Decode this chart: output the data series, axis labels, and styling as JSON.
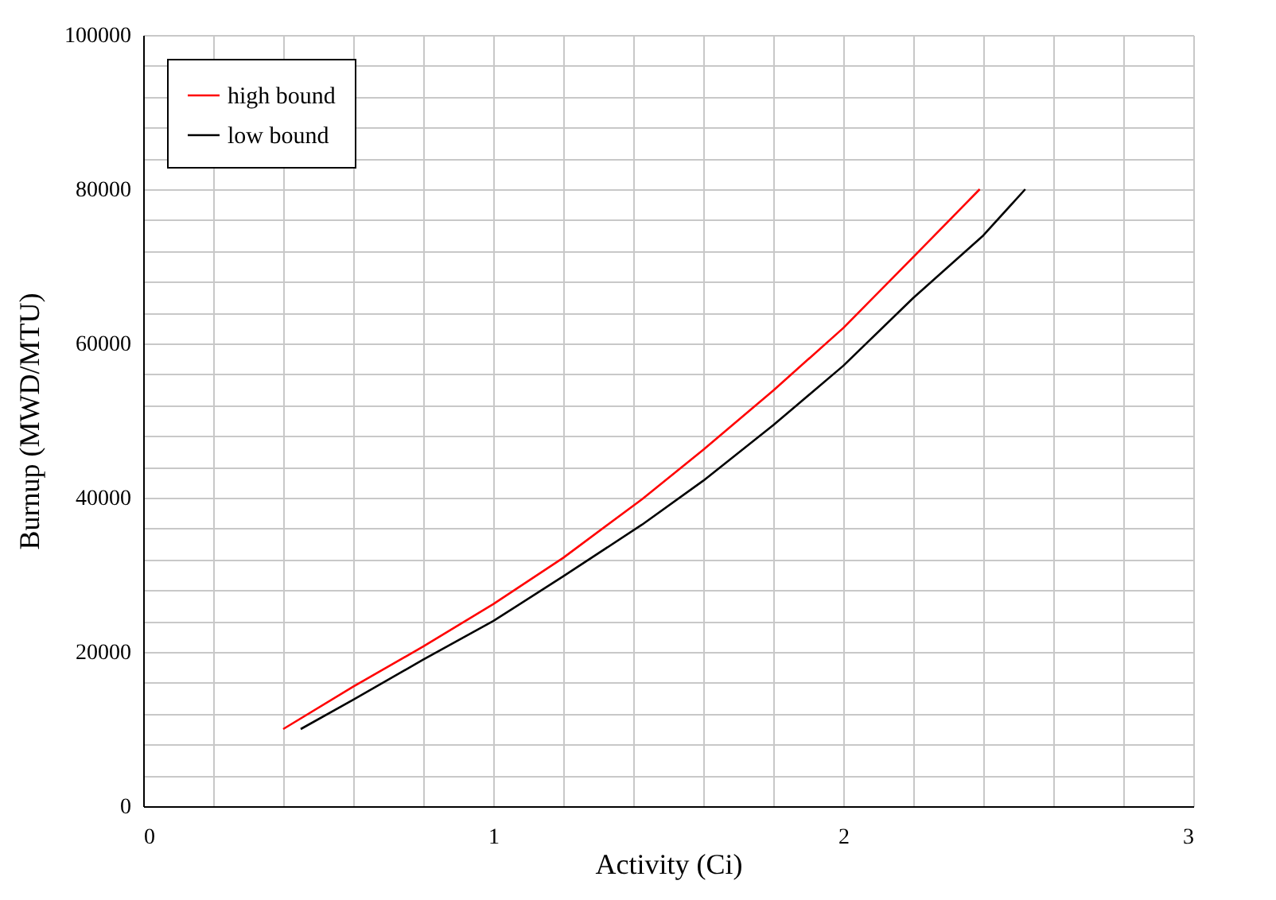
{
  "chart_data": {
    "type": "line",
    "xlabel": "Activity (Ci)",
    "ylabel": "Burnup (MWD/MTU)",
    "xlim": [
      0,
      3
    ],
    "xticks": [
      0,
      1,
      2,
      3,
      {
        "value": 0.2,
        "label": null
      },
      {
        "value": 0.4,
        "label": null
      },
      {
        "value": 0.6,
        "label": null
      },
      {
        "value": 0.8,
        "label": null
      },
      {
        "value": 1.2,
        "label": null
      },
      {
        "value": 1.4,
        "label": null
      },
      {
        "value": 1.6,
        "label": null
      },
      {
        "value": 1.8,
        "label": null
      },
      {
        "value": 2.2,
        "label": null
      },
      {
        "value": 2.4,
        "label": null
      },
      {
        "value": 2.6,
        "label": null
      },
      {
        "value": 2.8,
        "label": null
      }
    ],
    "ylim": [
      0,
      100000
    ],
    "yticks": [
      0,
      20000,
      40000,
      60000,
      80000,
      100000,
      {
        "value": 4000,
        "label": null
      },
      {
        "value": 8000,
        "label": null
      },
      {
        "value": 12000,
        "label": null
      },
      {
        "value": 16000,
        "label": null
      },
      {
        "value": 24000,
        "label": null
      },
      {
        "value": 28000,
        "label": null
      },
      {
        "value": 32000,
        "label": null
      },
      {
        "value": 36000,
        "label": null
      },
      {
        "value": 44000,
        "label": null
      },
      {
        "value": 48000,
        "label": null
      },
      {
        "value": 52000,
        "label": null
      },
      {
        "value": 56000,
        "label": null
      },
      {
        "value": 64000,
        "label": null
      },
      {
        "value": 68000,
        "label": null
      },
      {
        "value": 72000,
        "label": null
      },
      {
        "value": 76000,
        "label": null
      },
      {
        "value": 84000,
        "label": null
      },
      {
        "value": 88000,
        "label": null
      },
      {
        "value": 92000,
        "label": null
      },
      {
        "value": 96000,
        "label": null
      }
    ],
    "grid": true,
    "legend": "top left",
    "marker": "none",
    "line_style": "solid",
    "series": [
      {
        "name": "high bound",
        "color": "#ff0000",
        "x": [
          0.4,
          0.6,
          0.8,
          1.0,
          1.2,
          1.425,
          1.6,
          1.8,
          2.0,
          2.2,
          2.39
        ],
        "values": [
          10000,
          15500,
          20700,
          26200,
          32200,
          39800,
          46200,
          53900,
          62000,
          71200,
          80000
        ]
      },
      {
        "name": "low bound",
        "color": "#000000",
        "x": [
          0.45,
          0.6,
          0.8,
          1.0,
          1.2,
          1.425,
          1.6,
          1.8,
          2.0,
          2.2,
          2.4,
          2.52
        ],
        "values": [
          10000,
          13800,
          19000,
          24000,
          29800,
          36500,
          42200,
          49400,
          57100,
          65900,
          74000,
          80000
        ]
      }
    ]
  }
}
